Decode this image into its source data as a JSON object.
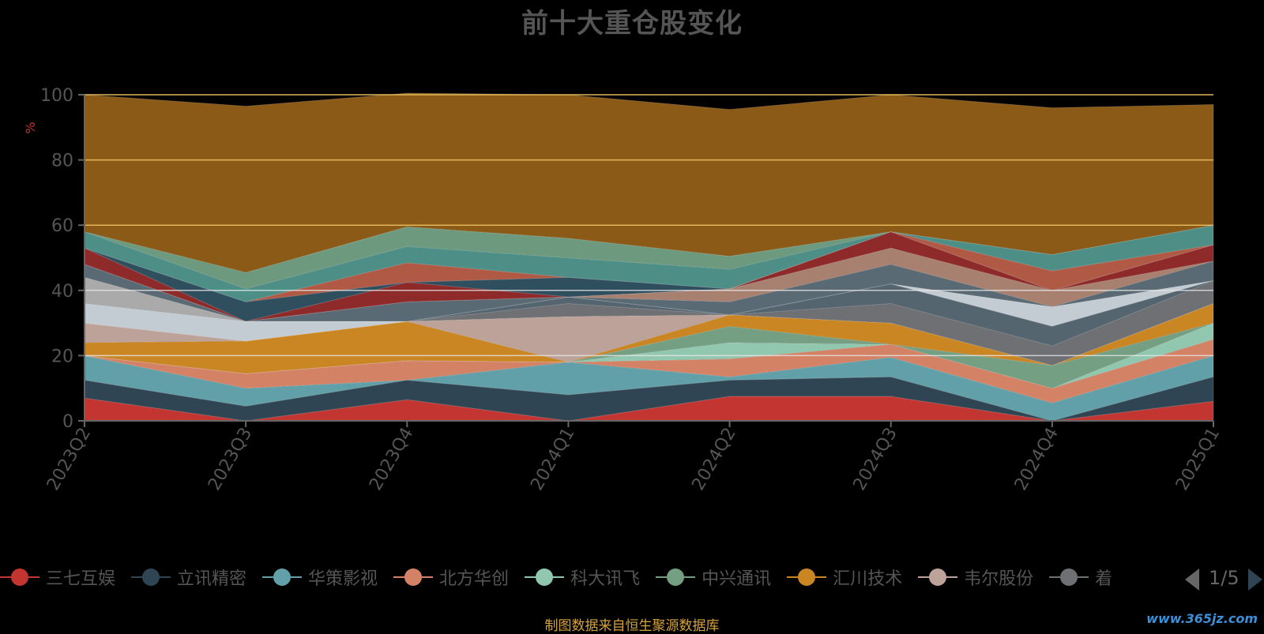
{
  "chart_data": {
    "type": "area",
    "title": "前十大重仓股变化",
    "ylabel": "%",
    "ylim": [
      0,
      100
    ],
    "yticks": [
      0,
      20,
      40,
      60,
      80,
      100
    ],
    "categories": [
      "2023Q2",
      "2023Q3",
      "2023Q4",
      "2024Q1",
      "2024Q2",
      "2024Q3",
      "2024Q4",
      "2025Q1"
    ],
    "stacked": true,
    "grid": true,
    "legend_position": "bottom",
    "legend_page": "1/5",
    "series": [
      {
        "values": [
          7,
          0,
          6.5,
          0,
          7.5,
          7.5,
          0,
          6
        ]
      },
      {
        "values": [
          5.5,
          4.5,
          6,
          8,
          5,
          6,
          0,
          7.5
        ]
      },
      {
        "values": [
          7.5,
          5.5,
          0,
          10,
          1,
          6,
          5.5,
          6.5
        ]
      },
      {
        "values": [
          0,
          4.5,
          6,
          0,
          5.5,
          4,
          4.5,
          5
        ]
      },
      {
        "values": [
          0,
          0,
          0,
          0,
          5,
          0,
          0,
          5
        ]
      },
      {
        "values": [
          0,
          0,
          0,
          0,
          5,
          0,
          7,
          0
        ]
      },
      {
        "values": [
          4,
          10,
          12,
          0,
          3.5,
          6.5,
          0,
          6
        ]
      },
      {
        "values": [
          6,
          0,
          0,
          14,
          0,
          0,
          0,
          0
        ]
      },
      {
        "values": [
          0,
          0,
          0,
          4,
          0,
          6,
          6,
          7
        ]
      },
      {
        "values": [
          0,
          0,
          0,
          2,
          0,
          6,
          6,
          0
        ]
      },
      {
        "values": [
          6,
          6,
          0,
          0,
          0,
          0,
          6,
          0
        ]
      },
      {
        "values": [
          8,
          0,
          0,
          0,
          0,
          0,
          0,
          0
        ]
      },
      {
        "values": [
          4,
          0,
          6,
          0,
          4,
          6,
          0,
          6
        ]
      },
      {
        "values": [
          0,
          0,
          0,
          0,
          4,
          5,
          5,
          0
        ]
      },
      {
        "values": [
          5,
          0,
          6,
          0,
          0,
          5,
          0,
          5
        ]
      },
      {
        "values": [
          0,
          6,
          0,
          6,
          0,
          0,
          0,
          0
        ]
      },
      {
        "values": [
          0,
          0,
          6,
          0,
          0,
          0,
          6,
          0
        ]
      },
      {
        "values": [
          5,
          4,
          5,
          6,
          6,
          0,
          5,
          6
        ]
      },
      {
        "values": [
          0,
          5,
          6,
          6,
          4,
          0,
          0,
          0
        ]
      },
      {
        "values": [
          42,
          51,
          41,
          44,
          45,
          42,
          45,
          37
        ]
      }
    ],
    "series_colors": [
      "#c23531",
      "#2f4554",
      "#61a0a8",
      "#d48265",
      "#91c7ae",
      "#749f83",
      "#ca8622",
      "#bda29a",
      "#6e7074",
      "#546570",
      "#c4ccd3",
      "#aaaaaa",
      "#5a6a74",
      "#a88070",
      "#8f2a2a",
      "#2f4f5f",
      "#b05a45",
      "#4d8f87",
      "#6d9a7e",
      "#8b5a17"
    ]
  },
  "legend": {
    "items": [
      {
        "label": "三七互娱",
        "color": "#c23531"
      },
      {
        "label": "立讯精密",
        "color": "#2f4554"
      },
      {
        "label": "华策影视",
        "color": "#61a0a8"
      },
      {
        "label": "北方华创",
        "color": "#d48265"
      },
      {
        "label": "科大讯飞",
        "color": "#91c7ae"
      },
      {
        "label": "中兴通讯",
        "color": "#749f83"
      },
      {
        "label": "汇川技术",
        "color": "#ca8622"
      },
      {
        "label": "韦尔股份",
        "color": "#bda29a"
      },
      {
        "label": "着",
        "color": "#6e7074"
      }
    ],
    "page": "1/5"
  },
  "source": "制图数据来自恒生聚源数据库",
  "watermark": "www.365jz.com"
}
